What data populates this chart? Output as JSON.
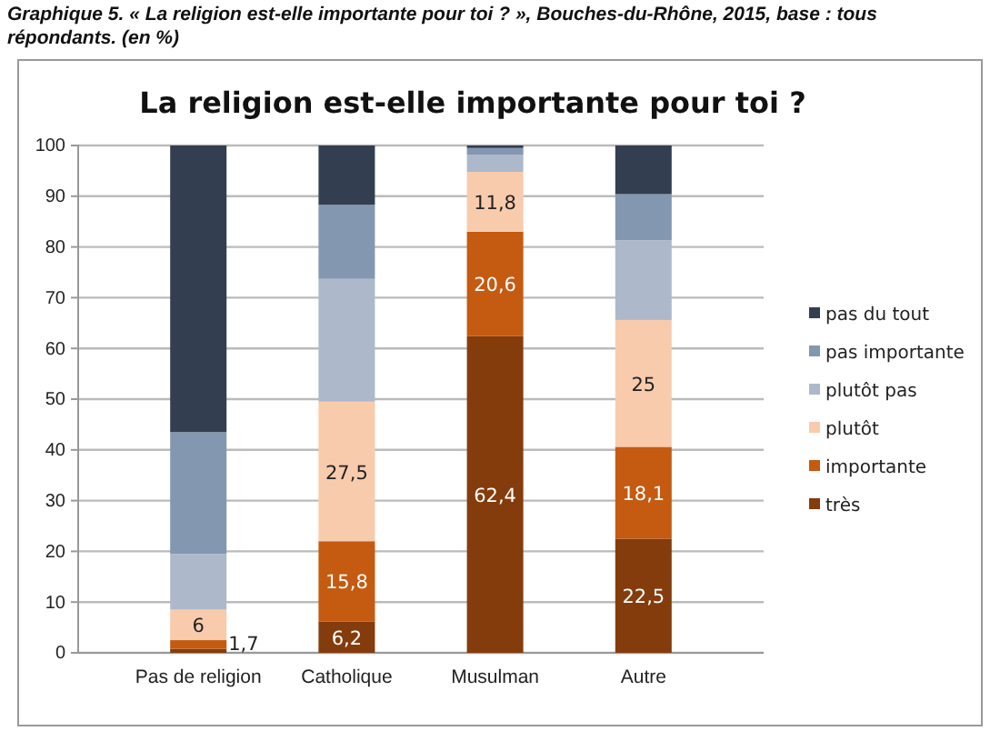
{
  "chart_data": {
    "type": "bar",
    "stacked": true,
    "title": "La religion est-elle importante pour toi ?",
    "annotations": [
      "Graphique 5. « La religion est-elle importante pour toi ? », Bouches-du-Rhône, 2015, base : tous répondants. (en %)"
    ],
    "categories": [
      "Pas de religion",
      "Catholique",
      "Musulman",
      "Autre"
    ],
    "ylim": [
      0,
      100
    ],
    "yticks": [
      0,
      10,
      20,
      30,
      40,
      50,
      60,
      70,
      80,
      90,
      100
    ],
    "grid": "y",
    "legend": "right",
    "series": [
      {
        "name": "très",
        "color": "#843c0c",
        "values": [
          0.8,
          6.2,
          62.4,
          22.5
        ],
        "value_labels": [
          null,
          "6,2",
          "62,4",
          "22,5"
        ]
      },
      {
        "name": "importante",
        "color": "#c55a11",
        "values": [
          1.7,
          15.8,
          20.6,
          18.1
        ],
        "value_labels": [
          "1,7",
          "15,8",
          "20,6",
          "18,1"
        ]
      },
      {
        "name": "plutôt",
        "color": "#f8cbad",
        "values": [
          6,
          27.5,
          11.8,
          25
        ],
        "value_labels": [
          "6",
          "27,5",
          "11,8",
          "25"
        ]
      },
      {
        "name": "plutôt pas",
        "color": "#adb9ca",
        "values": [
          11,
          24.2,
          3.4,
          15.7
        ]
      },
      {
        "name": "pas importante",
        "color": "#8497b0",
        "values": [
          24,
          14.6,
          1.3,
          9.1
        ]
      },
      {
        "name": "pas du tout",
        "color": "#333f50",
        "values": [
          56.5,
          11.7,
          0.5,
          9.6
        ]
      }
    ]
  }
}
